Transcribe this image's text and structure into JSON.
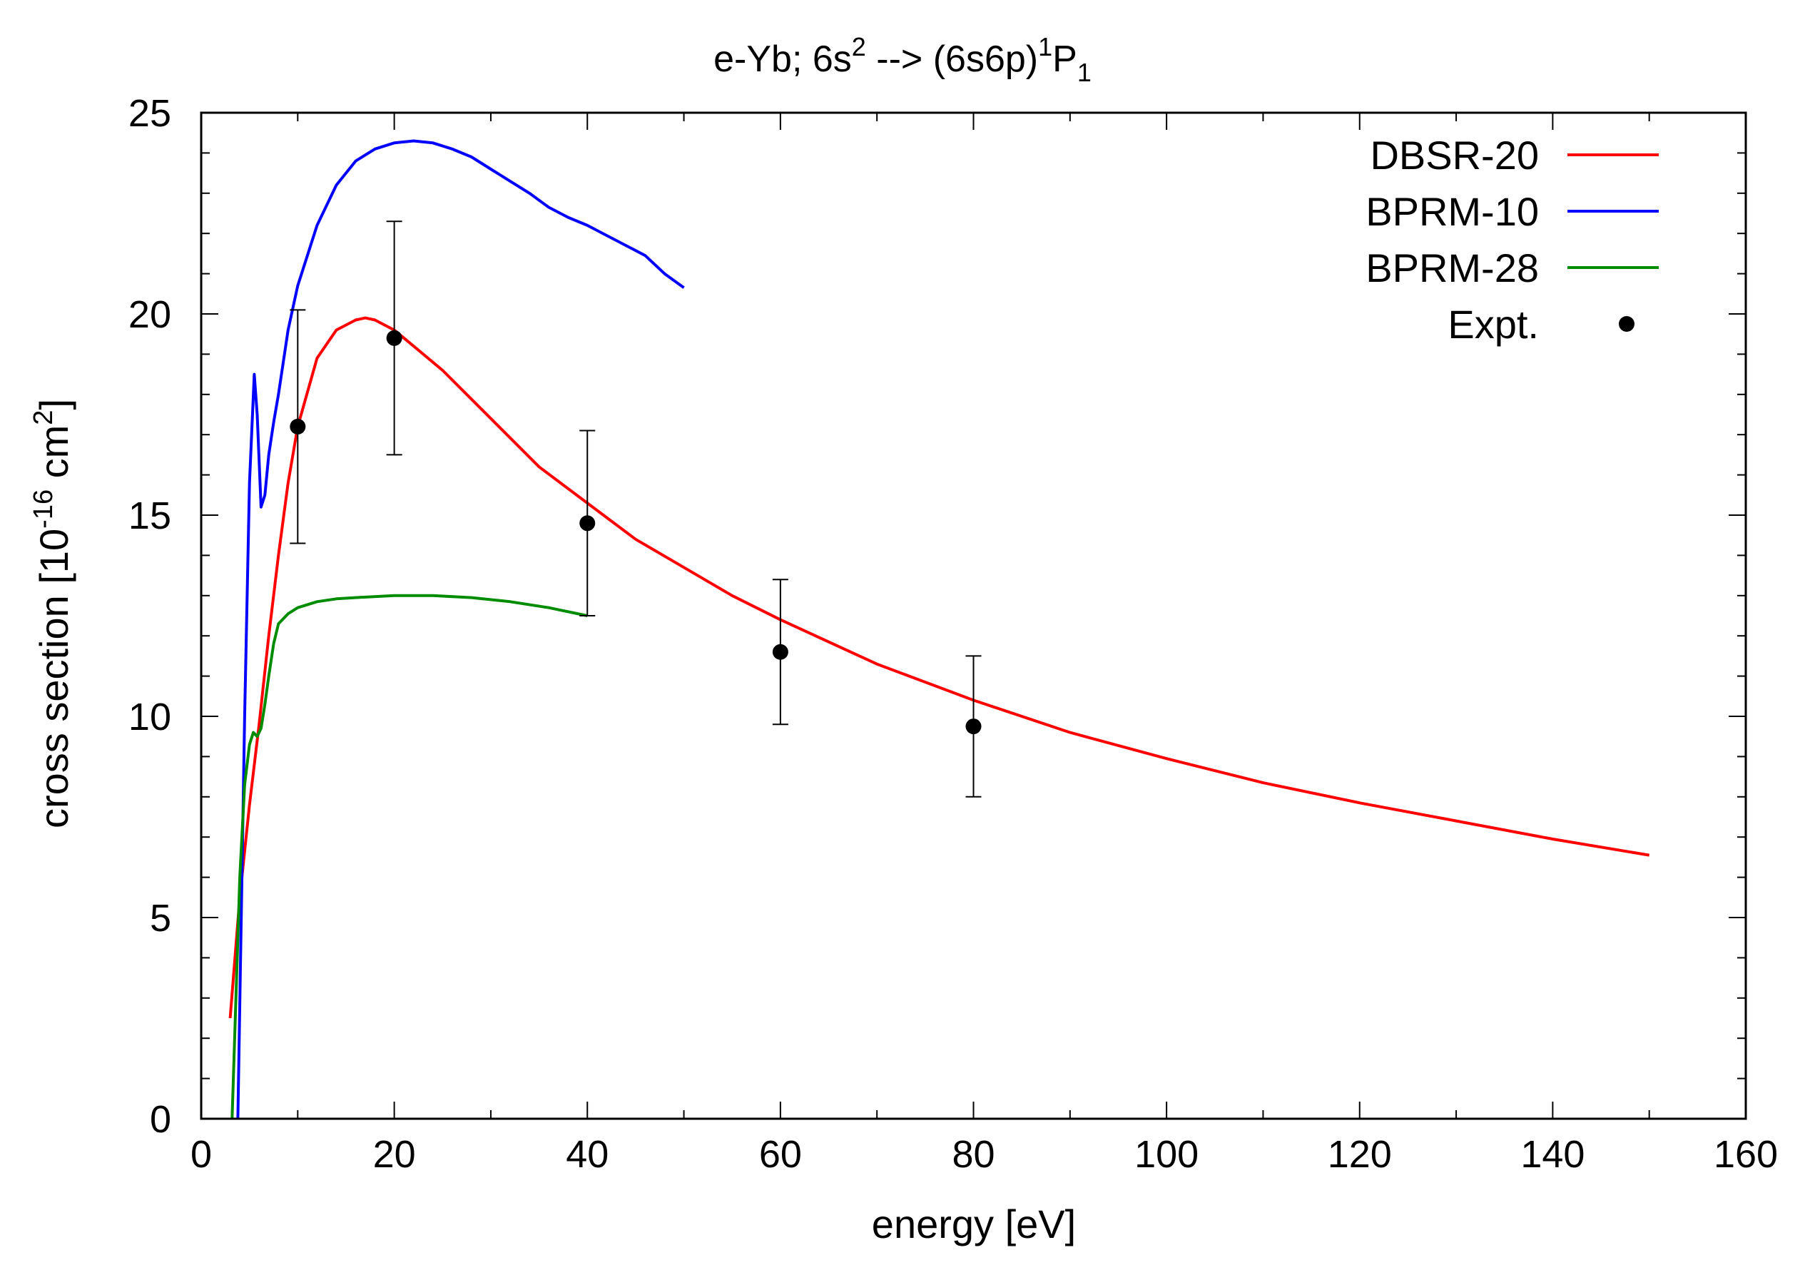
{
  "chart_data": {
    "type": "line",
    "title": {
      "main": "e-Yb; 6s",
      "main_sup": "2",
      "arrow": " --> (6s6p)",
      "arrow_sup": "1",
      "term": "P",
      "term_sub": "1"
    },
    "xlabel": "energy [eV]",
    "ylabel": {
      "prefix": "cross section [10",
      "exp": "-16",
      "mid": " cm",
      "unit_exp": "2",
      "suffix": "]"
    },
    "xlim": [
      0,
      160
    ],
    "ylim": [
      0,
      25
    ],
    "xticks": [
      0,
      20,
      40,
      60,
      80,
      100,
      120,
      140,
      160
    ],
    "yticks": [
      0,
      5,
      10,
      15,
      20,
      25
    ],
    "grid": false,
    "legend_position": "top-right",
    "series": [
      {
        "name": "DBSR-20",
        "color": "#ff0000",
        "style": "line",
        "x": [
          3.0,
          4.0,
          5.0,
          6.0,
          7.0,
          8.0,
          9.0,
          10.0,
          12.0,
          14.0,
          16.0,
          17.0,
          18.0,
          20.0,
          22.0,
          25.0,
          30.0,
          35.0,
          40.0,
          45.0,
          50.0,
          55.0,
          60.0,
          70.0,
          80.0,
          90.0,
          100.0,
          110.0,
          120.0,
          130.0,
          140.0,
          150.0
        ],
        "y": [
          2.5,
          5.5,
          7.8,
          9.8,
          12.0,
          14.0,
          15.8,
          17.2,
          18.9,
          19.6,
          19.85,
          19.9,
          19.85,
          19.6,
          19.2,
          18.6,
          17.4,
          16.2,
          15.3,
          14.4,
          13.7,
          13.0,
          12.4,
          11.3,
          10.4,
          9.6,
          8.95,
          8.35,
          7.85,
          7.4,
          6.95,
          6.55
        ]
      },
      {
        "name": "BPRM-10",
        "color": "#0000ff",
        "style": "line",
        "x": [
          3.8,
          4.5,
          5.0,
          5.5,
          5.8,
          6.2,
          6.6,
          7.0,
          7.5,
          8.0,
          9.0,
          10.0,
          12.0,
          14.0,
          16.0,
          18.0,
          20.0,
          22.0,
          24.0,
          26.0,
          28.0,
          30.0,
          32.0,
          34.0,
          36.0,
          38.0,
          40.0,
          42.0,
          44.0,
          46.0,
          48.0,
          50.0
        ],
        "y": [
          0.0,
          10.0,
          15.8,
          18.5,
          17.5,
          15.2,
          15.5,
          16.5,
          17.3,
          18.0,
          19.6,
          20.7,
          22.2,
          23.2,
          23.8,
          24.1,
          24.25,
          24.3,
          24.25,
          24.1,
          23.9,
          23.6,
          23.3,
          23.0,
          22.65,
          22.4,
          22.2,
          21.95,
          21.7,
          21.45,
          21.0,
          20.65
        ]
      },
      {
        "name": "BPRM-28",
        "color": "#008c00",
        "style": "line",
        "x": [
          3.2,
          3.6,
          4.0,
          4.5,
          5.0,
          5.4,
          5.8,
          6.2,
          6.6,
          7.0,
          7.5,
          8.0,
          9.0,
          10.0,
          12.0,
          14.0,
          16.0,
          20.0,
          24.0,
          28.0,
          32.0,
          36.0,
          40.0
        ],
        "y": [
          0.0,
          3.0,
          6.0,
          8.3,
          9.3,
          9.6,
          9.5,
          9.7,
          10.3,
          11.0,
          11.8,
          12.3,
          12.55,
          12.7,
          12.85,
          12.92,
          12.95,
          13.0,
          13.0,
          12.95,
          12.85,
          12.7,
          12.5
        ]
      },
      {
        "name": "Expt.",
        "color": "#000000",
        "style": "points",
        "x": [
          10,
          20,
          40,
          60,
          80
        ],
        "y": [
          17.2,
          19.4,
          14.8,
          11.6,
          9.75
        ],
        "yerr_low": [
          14.3,
          16.5,
          12.5,
          9.8,
          8.0
        ],
        "yerr_high": [
          20.1,
          22.3,
          17.1,
          13.4,
          11.5
        ]
      }
    ]
  }
}
